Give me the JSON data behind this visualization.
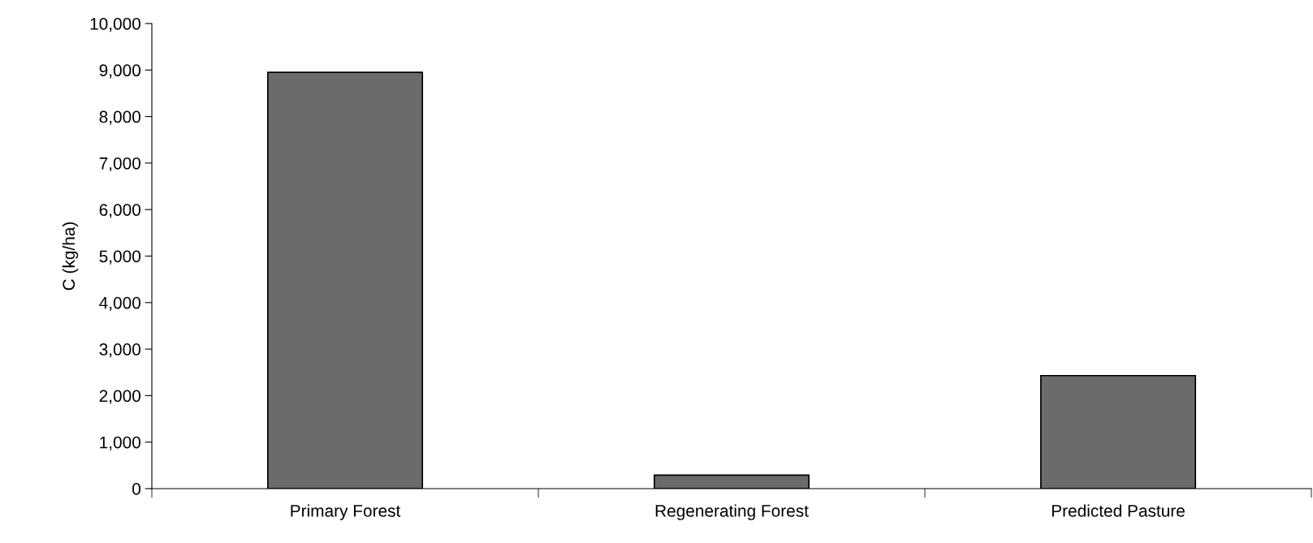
{
  "chart_data": {
    "type": "bar",
    "ylabel": "C (kg/ha)",
    "categories": [
      "Primary Forest",
      "Regenerating Forest",
      "Predicted Pasture"
    ],
    "values": [
      8950,
      290,
      2430
    ],
    "color": "#6b6b6b",
    "ylim": [
      0,
      10000
    ],
    "yticks": [
      {
        "value": 0,
        "label": "0"
      },
      {
        "value": 1000,
        "label": "1,000"
      },
      {
        "value": 2000,
        "label": "2,000"
      },
      {
        "value": 3000,
        "label": "3,000"
      },
      {
        "value": 4000,
        "label": "4,000"
      },
      {
        "value": 5000,
        "label": "5,000"
      },
      {
        "value": 6000,
        "label": "6,000"
      },
      {
        "value": 7000,
        "label": "7,000"
      },
      {
        "value": 8000,
        "label": "8,000"
      },
      {
        "value": 9000,
        "label": "9,000"
      },
      {
        "value": 10000,
        "label": "10,000"
      }
    ],
    "grid": false
  }
}
